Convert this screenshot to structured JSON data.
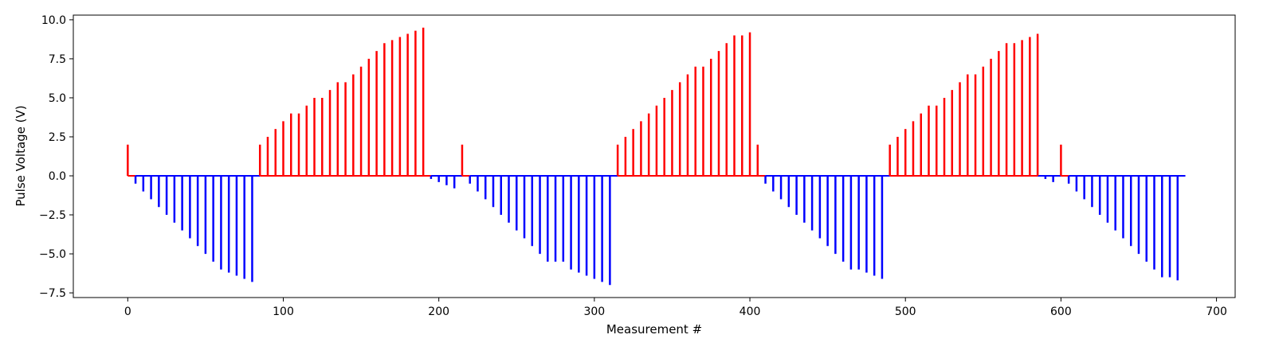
{
  "chart_data": {
    "type": "bar",
    "title": "",
    "xlabel": "Measurement #",
    "ylabel": "Pulse Voltage (V)",
    "xlim": [
      -35,
      712
    ],
    "ylim": [
      -7.8,
      10.3
    ],
    "xticks": [
      0,
      100,
      200,
      300,
      400,
      500,
      600,
      700
    ],
    "yticks": [
      -7.5,
      -5.0,
      -2.5,
      0.0,
      2.5,
      5.0,
      7.5,
      10.0
    ],
    "grid": false,
    "legend": "none",
    "colors": {
      "positive": "#ff0000",
      "negative": "#0000ff"
    },
    "baseline": [
      {
        "x0": 0,
        "x1": 5,
        "color": "#ff0000"
      },
      {
        "x0": 5,
        "x1": 85,
        "color": "#0000ff"
      },
      {
        "x0": 85,
        "x1": 195,
        "color": "#ff0000"
      },
      {
        "x0": 195,
        "x1": 215,
        "color": "#0000ff"
      },
      {
        "x0": 215,
        "x1": 220,
        "color": "#ff0000"
      },
      {
        "x0": 220,
        "x1": 315,
        "color": "#0000ff"
      },
      {
        "x0": 315,
        "x1": 410,
        "color": "#ff0000"
      },
      {
        "x0": 410,
        "x1": 490,
        "color": "#0000ff"
      },
      {
        "x0": 490,
        "x1": 585,
        "color": "#ff0000"
      },
      {
        "x0": 585,
        "x1": 600,
        "color": "#0000ff"
      },
      {
        "x0": 600,
        "x1": 605,
        "color": "#ff0000"
      },
      {
        "x0": 605,
        "x1": 680,
        "color": "#0000ff"
      }
    ],
    "series": [
      {
        "x": [
          0,
          5,
          10,
          15,
          20,
          25,
          30,
          35,
          40,
          45,
          50,
          55,
          60,
          65,
          70,
          75,
          80,
          85,
          90,
          95,
          100,
          105,
          110,
          115,
          120,
          125,
          130,
          135,
          140,
          145,
          150,
          155,
          160,
          165,
          170,
          175,
          180,
          185,
          190,
          195,
          200,
          205,
          210,
          215,
          220,
          225,
          230,
          235,
          240,
          245,
          250,
          255,
          260,
          265,
          270,
          275,
          280,
          285,
          290,
          295,
          300,
          305,
          310,
          315,
          320,
          325,
          330,
          335,
          340,
          345,
          350,
          355,
          360,
          365,
          370,
          375,
          380,
          385,
          390,
          395,
          400,
          405,
          410,
          415,
          420,
          425,
          430,
          435,
          440,
          445,
          450,
          455,
          460,
          465,
          470,
          475,
          480,
          485,
          490,
          495,
          500,
          505,
          510,
          515,
          520,
          525,
          530,
          535,
          540,
          545,
          550,
          555,
          560,
          565,
          570,
          575,
          580,
          585,
          590,
          595,
          600,
          605,
          610,
          615,
          620,
          625,
          630,
          635,
          640,
          645,
          650,
          655,
          660,
          665,
          670,
          675
        ],
        "values": [
          2.0,
          -0.5,
          -1.0,
          -1.5,
          -2.0,
          -2.5,
          -3.0,
          -3.5,
          -4.0,
          -4.5,
          -5.0,
          -5.5,
          -6.0,
          -6.2,
          -6.4,
          -6.6,
          -6.8,
          2.0,
          2.5,
          3.0,
          3.5,
          4.0,
          4.0,
          4.5,
          5.0,
          5.0,
          5.5,
          6.0,
          6.0,
          6.5,
          7.0,
          7.5,
          8.0,
          8.5,
          8.7,
          8.9,
          9.1,
          9.3,
          9.5,
          -0.2,
          -0.4,
          -0.6,
          -0.8,
          2.0,
          -0.5,
          -1.0,
          -1.5,
          -2.0,
          -2.5,
          -3.0,
          -3.5,
          -4.0,
          -4.5,
          -5.0,
          -5.5,
          -5.5,
          -5.5,
          -6.0,
          -6.2,
          -6.4,
          -6.6,
          -6.8,
          -7.0,
          2.0,
          2.5,
          3.0,
          3.5,
          4.0,
          4.5,
          5.0,
          5.5,
          6.0,
          6.5,
          7.0,
          7.0,
          7.5,
          8.0,
          8.5,
          9.0,
          9.0,
          9.2,
          2.0,
          -0.5,
          -1.0,
          -1.5,
          -2.0,
          -2.5,
          -3.0,
          -3.5,
          -4.0,
          -4.5,
          -5.0,
          -5.5,
          -6.0,
          -6.0,
          -6.2,
          -6.4,
          -6.6,
          2.0,
          2.5,
          3.0,
          3.5,
          4.0,
          4.5,
          4.5,
          5.0,
          5.5,
          6.0,
          6.5,
          6.5,
          7.0,
          7.5,
          8.0,
          8.5,
          8.5,
          8.7,
          8.9,
          9.1,
          -0.2,
          -0.4,
          2.0,
          -0.5,
          -1.0,
          -1.5,
          -2.0,
          -2.5,
          -3.0,
          -3.5,
          -4.0,
          -4.5,
          -5.0,
          -5.5,
          -6.0,
          -6.5,
          -6.5,
          -6.7
        ]
      }
    ]
  }
}
